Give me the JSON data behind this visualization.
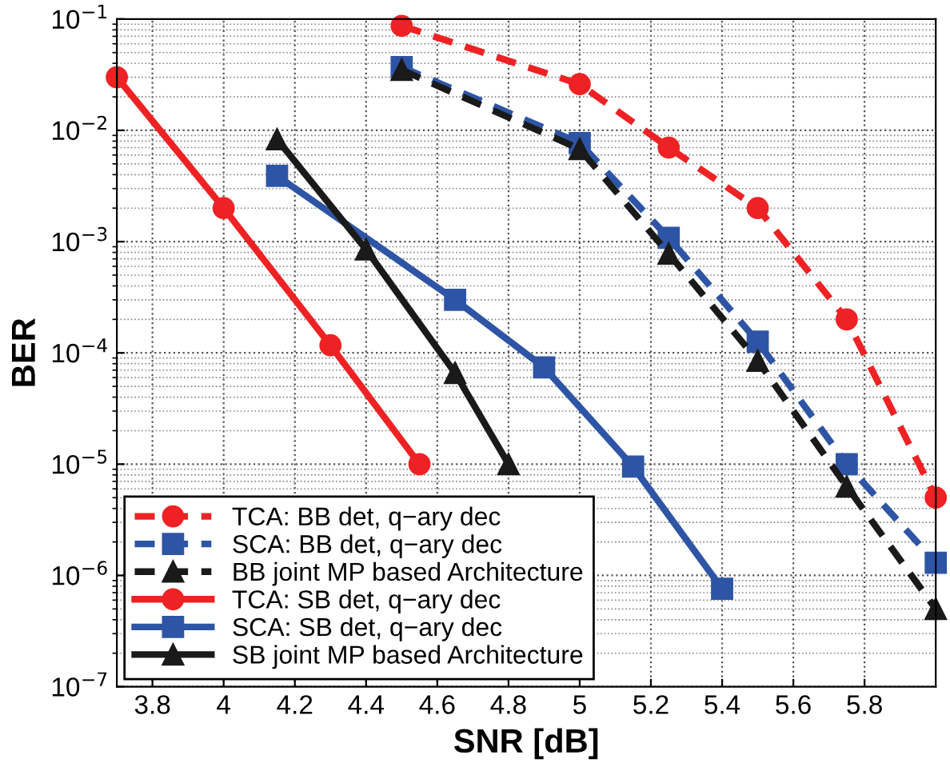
{
  "chart_data": {
    "type": "line",
    "xlabel": "SNR [dB]",
    "ylabel": "BER",
    "log": "y",
    "grid": true,
    "legend": "bottom left",
    "xlim": [
      3.7,
      6.0
    ],
    "ylim": [
      1e-07,
      0.1
    ],
    "xticks": [
      3.8,
      4,
      4.2,
      4.4,
      4.6,
      4.8,
      5,
      5.2,
      5.4,
      5.6,
      5.8
    ],
    "yticks": [
      {
        "value": 1e-07,
        "label": "10$^{−7}$"
      },
      {
        "value": 1e-06,
        "label": "10$^{−6}$"
      },
      {
        "value": 1e-05,
        "label": "10$^{−5}$"
      },
      {
        "value": 0.0001,
        "label": "10$^{−4}$"
      },
      {
        "value": 0.001,
        "label": "10$^{−3}$"
      },
      {
        "value": 0.01,
        "label": "10$^{−2}$"
      },
      {
        "value": 0.1,
        "label": "10$^{−1}$"
      }
    ],
    "series": [
      {
        "name": "TCA: BB det, q−ary dec",
        "color": "#ee2224",
        "marker": "circle",
        "line_style": "dashed",
        "x": [
          4.5,
          5,
          5.25,
          5.5,
          5.75,
          6.0
        ],
        "values": [
          0.087,
          0.026,
          0.007,
          0.002,
          0.0002,
          5e-06
        ]
      },
      {
        "name": "SCA: BB det, q−ary dec",
        "color": "#2e55a5",
        "marker": "square",
        "line_style": "dashed",
        "x": [
          4.5,
          5,
          5.25,
          5.5,
          5.75,
          6.0
        ],
        "values": [
          0.037,
          0.0077,
          0.00108,
          0.000126,
          1e-05,
          1.3e-06
        ]
      },
      {
        "name": "BB joint MP based Architecture",
        "color": "#1a1a1a",
        "marker": "triangle",
        "line_style": "dashed",
        "x": [
          4.5,
          5,
          5.25,
          5.5,
          5.75,
          6.0
        ],
        "values": [
          0.035,
          0.0068,
          0.00078,
          8.5e-05,
          6.3e-06,
          5e-07
        ]
      },
      {
        "name": "TCA: SB det, q−ary dec",
        "color": "#ee2224",
        "marker": "circle",
        "line_style": "solid",
        "x": [
          3.7,
          4,
          4.3,
          4.55
        ],
        "values": [
          0.03,
          0.002,
          0.000117,
          1e-05
        ]
      },
      {
        "name": "SCA: SB det, q−ary dec",
        "color": "#2e55a5",
        "marker": "square",
        "line_style": "solid",
        "x": [
          4.15,
          4.65,
          4.9,
          5.15,
          5.4
        ],
        "values": [
          0.0039,
          0.0003,
          7.4e-05,
          9.5e-06,
          7.6e-07
        ]
      },
      {
        "name": "SB joint MP based Architecture",
        "color": "#1a1a1a",
        "marker": "triangle",
        "line_style": "solid",
        "x": [
          4.15,
          4.4,
          4.65,
          4.8
        ],
        "values": [
          0.0083,
          0.00085,
          6.6e-05,
          1e-05
        ]
      }
    ]
  }
}
